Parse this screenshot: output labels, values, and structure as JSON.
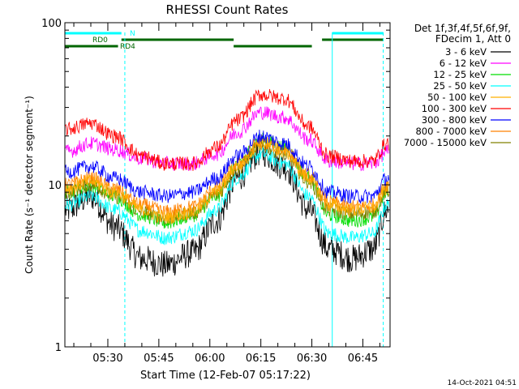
{
  "chart_data": {
    "type": "line",
    "title": "RHESSI Count Rates",
    "xlabel": "Start Time (12-Feb-07 05:17:22)",
    "ylabel": "Count Rate (s⁻¹ detector segment⁻¹)",
    "y_scale": "log",
    "ylim": [
      1,
      100
    ],
    "y_ticks": [
      "1",
      "10",
      "100"
    ],
    "x_range": [
      "05:17:22",
      "06:53:00"
    ],
    "x_ticks": [
      "05:30",
      "05:45",
      "06:00",
      "06:15",
      "06:30",
      "06:45"
    ],
    "legend_header": [
      "Det 1f,3f,4f,5f,6f,9f,",
      "FDecim 1, Att 0"
    ],
    "legend_position": "right",
    "series": [
      {
        "name": "3 - 6 keV",
        "color": "#000000",
        "x": [
          "05:18",
          "05:25",
          "05:32",
          "05:40",
          "05:47",
          "05:55",
          "06:02",
          "06:08",
          "06:15",
          "06:22",
          "06:29",
          "06:35",
          "06:42",
          "06:48",
          "06:52"
        ],
        "values": [
          7.0,
          8.5,
          5.5,
          3.5,
          3.2,
          3.8,
          6.0,
          11.0,
          16.0,
          13.0,
          7.0,
          4.0,
          3.5,
          4.0,
          7.0
        ]
      },
      {
        "name": "6 - 12 keV",
        "color": "#ff00ff",
        "x": [
          "05:18",
          "05:25",
          "05:32",
          "05:40",
          "05:47",
          "05:55",
          "06:02",
          "06:08",
          "06:15",
          "06:22",
          "06:29",
          "06:35",
          "06:42",
          "06:48",
          "06:52"
        ],
        "values": [
          16.0,
          18.0,
          16.5,
          14.5,
          13.5,
          13.5,
          15.5,
          21.0,
          28.0,
          26.0,
          19.0,
          14.0,
          13.5,
          13.5,
          16.0
        ]
      },
      {
        "name": "12 - 25 keV",
        "color": "#00dd00",
        "x": [
          "05:18",
          "05:25",
          "05:32",
          "05:40",
          "05:47",
          "05:55",
          "06:02",
          "06:08",
          "06:15",
          "06:22",
          "06:29",
          "06:35",
          "06:42",
          "06:48",
          "06:52"
        ],
        "values": [
          9.0,
          10.0,
          8.5,
          6.5,
          5.8,
          6.5,
          8.5,
          13.5,
          19.0,
          17.0,
          11.0,
          6.5,
          6.0,
          6.3,
          9.0
        ]
      },
      {
        "name": "25 - 50 keV",
        "color": "#00ffff",
        "x": [
          "05:18",
          "05:25",
          "05:32",
          "05:40",
          "05:47",
          "05:55",
          "06:02",
          "06:08",
          "06:15",
          "06:22",
          "06:29",
          "06:35",
          "06:42",
          "06:48",
          "06:52"
        ],
        "values": [
          7.5,
          8.5,
          7.0,
          5.2,
          4.7,
          5.2,
          7.0,
          11.0,
          15.5,
          13.5,
          8.5,
          5.0,
          4.7,
          5.0,
          7.5
        ]
      },
      {
        "name": "50 - 100 keV",
        "color": "#ffb000",
        "x": [
          "05:18",
          "05:25",
          "05:32",
          "05:40",
          "05:47",
          "05:55",
          "06:02",
          "06:08",
          "06:15",
          "06:22",
          "06:29",
          "06:35",
          "06:42",
          "06:48",
          "06:52"
        ],
        "values": [
          9.5,
          10.5,
          9.0,
          7.0,
          6.3,
          6.8,
          9.0,
          13.0,
          18.0,
          16.0,
          11.0,
          7.5,
          7.0,
          7.2,
          9.5
        ]
      },
      {
        "name": "100 - 300 keV",
        "color": "#ff0000",
        "x": [
          "05:18",
          "05:25",
          "05:32",
          "05:40",
          "05:47",
          "05:55",
          "06:02",
          "06:08",
          "06:15",
          "06:22",
          "06:29",
          "06:35",
          "06:42",
          "06:48",
          "06:52"
        ],
        "values": [
          22.0,
          24.0,
          20.0,
          15.0,
          13.5,
          13.5,
          17.0,
          25.0,
          36.0,
          34.0,
          23.0,
          15.0,
          14.0,
          14.0,
          18.0
        ]
      },
      {
        "name": "300 - 800 keV",
        "color": "#0000ff",
        "x": [
          "05:18",
          "05:25",
          "05:32",
          "05:40",
          "05:47",
          "05:55",
          "06:02",
          "06:08",
          "06:15",
          "06:22",
          "06:29",
          "06:35",
          "06:42",
          "06:48",
          "06:52"
        ],
        "values": [
          12.0,
          13.0,
          11.0,
          9.0,
          8.5,
          9.0,
          11.0,
          15.0,
          20.0,
          18.0,
          13.0,
          9.0,
          8.5,
          8.5,
          11.0
        ]
      },
      {
        "name": "800 - 7000 keV",
        "color": "#ff8000",
        "x": [
          "05:18",
          "05:25",
          "05:32",
          "05:40",
          "05:47",
          "05:55",
          "06:02",
          "06:08",
          "06:15",
          "06:22",
          "06:29",
          "06:35",
          "06:42",
          "06:48",
          "06:52"
        ],
        "values": [
          10.0,
          11.0,
          9.5,
          7.5,
          6.8,
          7.3,
          9.5,
          13.5,
          18.5,
          16.5,
          11.5,
          7.8,
          7.3,
          7.5,
          10.0
        ]
      },
      {
        "name": "7000 - 15000 keV",
        "color": "#808000",
        "x": [
          "05:18",
          "05:25",
          "05:32",
          "05:40",
          "05:47",
          "05:55",
          "06:02",
          "06:08",
          "06:15",
          "06:22",
          "06:29",
          "06:35",
          "06:42",
          "06:48",
          "06:52"
        ],
        "values": [
          9.0,
          10.0,
          8.5,
          6.8,
          6.2,
          6.7,
          8.7,
          12.5,
          17.5,
          15.5,
          10.5,
          7.0,
          6.6,
          6.8,
          9.0
        ]
      }
    ],
    "flag_bars": [
      {
        "label": "N",
        "color": "#00ffff",
        "segments": [
          [
            "05:17:22",
            "05:34"
          ],
          [
            "06:36",
            "06:51"
          ]
        ]
      },
      {
        "label": "RD0",
        "color": "#006600",
        "segments": [
          [
            "05:34",
            "06:07"
          ],
          [
            "06:33",
            "06:51"
          ]
        ]
      },
      {
        "label": "RD4",
        "color": "#006600",
        "segments": [
          [
            "05:17:22",
            "05:33"
          ],
          [
            "06:07",
            "06:30"
          ]
        ]
      }
    ],
    "vertical_markers": [
      {
        "time": "05:17:22",
        "style": "solid",
        "color": "#00ffff"
      },
      {
        "time": "05:35",
        "style": "dashed",
        "color": "#00ffff"
      },
      {
        "time": "06:36",
        "style": "solid",
        "color": "#00ffff"
      },
      {
        "time": "06:51",
        "style": "dashed",
        "color": "#00ffff"
      }
    ],
    "grid": false
  },
  "footer": {
    "timestamp": "14-Oct-2021 04:51"
  }
}
